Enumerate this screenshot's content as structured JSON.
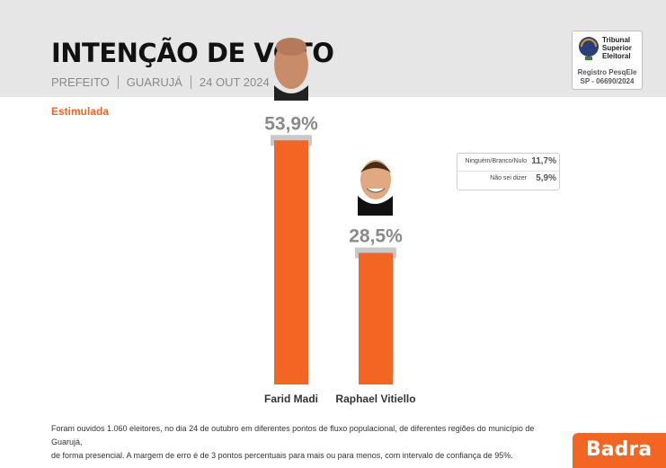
{
  "header": {
    "title": "INTENÇÃO DE VOTO",
    "subtitle_parts": [
      "PREFEITO",
      "GUARUJÁ",
      "24 OUT 2024"
    ]
  },
  "tse_badge": {
    "name_lines": [
      "Tribunal",
      "Superior",
      "Eleitoral"
    ],
    "registry_lines": [
      "Registro PesqEle",
      "SP - 06690/2024"
    ]
  },
  "section_label": "Estimulada",
  "chart_data": {
    "type": "bar",
    "title": "INTENÇÃO DE VOTO",
    "categories": [
      "Farid Madi",
      "Raphael Vitiello"
    ],
    "values": [
      53.9,
      28.5
    ],
    "value_labels": [
      "53,9%",
      "28,5%"
    ],
    "ylim": [
      0,
      60
    ],
    "grid": false,
    "colors": {
      "bar": "#f26522",
      "bar_cap": "#c9c9c9",
      "value_text": "#8a8a8a"
    },
    "extra": [
      {
        "label": "Ninguém/Branco/Nulo",
        "value": 11.7,
        "value_label": "11,7%"
      },
      {
        "label": "Não sei dizer",
        "value": 5.9,
        "value_label": "5,9%"
      }
    ]
  },
  "footnote": {
    "line1": "Foram ouvidos 1.060 eleitores, no dia 24 de outubro em diferentes pontos de fluxo populacional, de diferentes regiões do município de Guarujá,",
    "line2": "de forma presencial. A margem de erro é de 3 pontos percentuais para mais ou para menos, com intervalo de confiança de 95%."
  },
  "brand": {
    "name": "Badra",
    "color": "#f26522"
  }
}
